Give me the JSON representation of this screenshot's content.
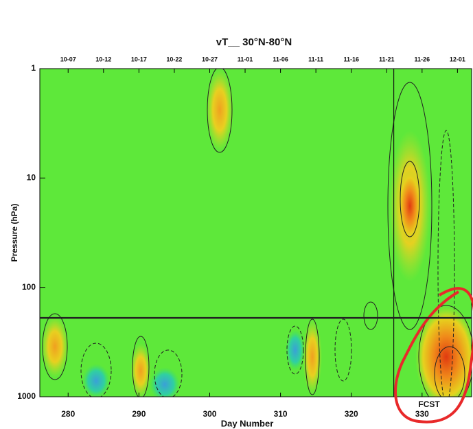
{
  "chart_data": {
    "type": "contour",
    "title": "vT__ 30°N-80°N",
    "x_label": "Day Number",
    "y_label": "Pressure (hPa)",
    "xlim": [
      276,
      337
    ],
    "xticks": [
      280,
      290,
      300,
      310,
      320,
      330
    ],
    "x2ticks": [
      {
        "value": 280,
        "label": "10-07"
      },
      {
        "value": 285,
        "label": "10-12"
      },
      {
        "value": 290,
        "label": "10-17"
      },
      {
        "value": 295,
        "label": "10-22"
      },
      {
        "value": 300,
        "label": "10-27"
      },
      {
        "value": 305,
        "label": "11-01"
      },
      {
        "value": 310,
        "label": "11-06"
      },
      {
        "value": 315,
        "label": "11-11"
      },
      {
        "value": 320,
        "label": "11-16"
      },
      {
        "value": 325,
        "label": "11-21"
      },
      {
        "value": 330,
        "label": "11-26"
      },
      {
        "value": 335,
        "label": "12-01"
      }
    ],
    "ylim": [
      1,
      1000
    ],
    "yticks": [
      1,
      10,
      100,
      1000
    ],
    "y_scale": "log",
    "y_inverted": true,
    "vline": 326,
    "hline": 190,
    "annotation": "FCST"
  }
}
